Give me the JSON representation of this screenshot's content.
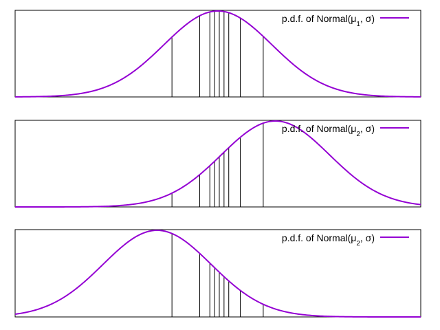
{
  "chart_data": [
    {
      "type": "line",
      "legend": {
        "label": "p.d.f. of Normal(μ1, σ)",
        "placement": "top-right",
        "color": "#9400d3"
      },
      "x_range": [
        -3.0,
        3.0
      ],
      "series": [
        {
          "name": "p.d.f. of Normal(μ1, σ)",
          "mu": 0.0,
          "sigma": 0.8,
          "color": "#9400d3"
        }
      ],
      "vlines_x": [
        -0.68,
        -0.27,
        -0.12,
        -0.05,
        0.02,
        0.09,
        0.16,
        0.33,
        0.67
      ],
      "grid": false
    },
    {
      "type": "line",
      "legend": {
        "label": "p.d.f. of Normal(μ2, σ)",
        "placement": "top-right",
        "color": "#9400d3"
      },
      "x_range": [
        -3.0,
        3.0
      ],
      "series": [
        {
          "name": "p.d.f. of Normal(μ2, σ)",
          "mu": 0.85,
          "sigma": 0.8,
          "color": "#9400d3"
        }
      ],
      "vlines_x": [
        -0.68,
        -0.27,
        -0.12,
        -0.05,
        0.02,
        0.09,
        0.16,
        0.33,
        0.67
      ],
      "grid": false
    },
    {
      "type": "line",
      "legend": {
        "label": "p.d.f. of Normal(μ2, σ)",
        "placement": "top-right",
        "color": "#9400d3"
      },
      "x_range": [
        -3.0,
        3.0
      ],
      "series": [
        {
          "name": "p.d.f. of Normal(μ2, σ)",
          "mu": -0.9,
          "sigma": 0.8,
          "color": "#9400d3"
        }
      ],
      "vlines_x": [
        -0.68,
        -0.27,
        -0.12,
        -0.05,
        0.02,
        0.09,
        0.16,
        0.33,
        0.67
      ],
      "grid": false
    }
  ]
}
